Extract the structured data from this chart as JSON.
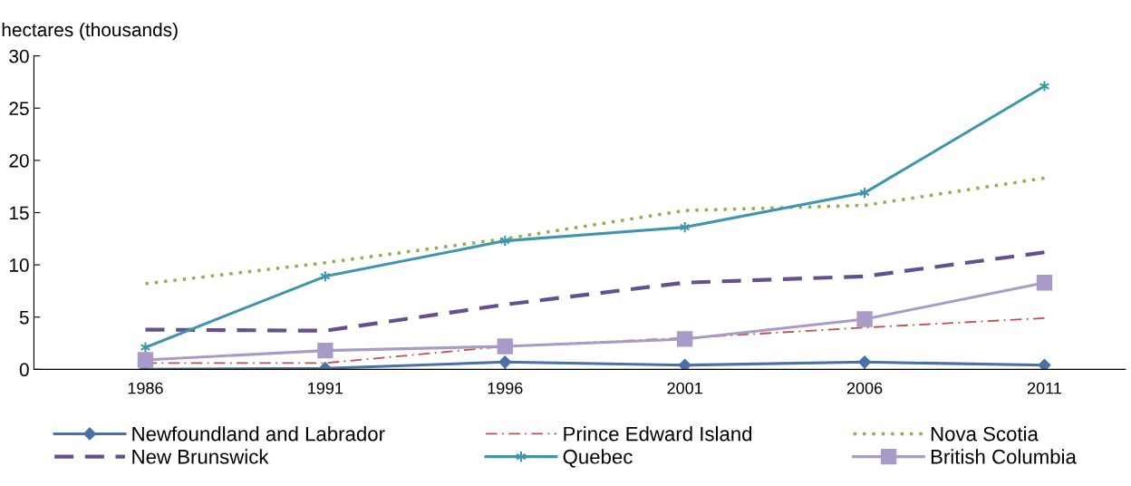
{
  "chart_data": {
    "type": "line",
    "ylabel": "hectares (thousands)",
    "categories": [
      "1986",
      "1991",
      "1996",
      "2001",
      "2006",
      "2011"
    ],
    "ylim": [
      0,
      30
    ],
    "yticks": [
      0,
      5,
      10,
      15,
      20,
      25,
      30
    ],
    "grid": false,
    "legend": "bottom",
    "series": [
      {
        "name": "Newfoundland and Labrador",
        "color": "#4a70a8",
        "values": [
          0.0,
          0.1,
          0.7,
          0.4,
          0.7,
          0.4
        ],
        "marker": "diamond",
        "line_style": "solid"
      },
      {
        "name": "Prince Edward Island",
        "color": "#c0504d",
        "values": [
          0.6,
          0.6,
          2.2,
          3.0,
          4.0,
          4.9
        ],
        "marker": "none",
        "line_style": "dashdot"
      },
      {
        "name": "Nova Scotia",
        "color": "#8fb04f",
        "values": [
          8.2,
          10.2,
          12.5,
          15.2,
          15.7,
          18.3
        ],
        "marker": "none",
        "line_style": "dotted"
      },
      {
        "name": "New Brunswick",
        "color": "#65508f",
        "values": [
          3.8,
          3.7,
          6.2,
          8.3,
          8.9,
          11.2
        ],
        "marker": "none",
        "line_style": "dashed"
      },
      {
        "name": "Quebec",
        "color": "#3f96ac",
        "values": [
          2.1,
          8.9,
          12.3,
          13.6,
          16.9,
          27.1
        ],
        "marker": "cross",
        "line_style": "solid"
      },
      {
        "name": "British Columbia",
        "color": "#a99bc8",
        "values": [
          0.9,
          1.8,
          2.2,
          2.9,
          4.8,
          8.3
        ],
        "marker": "square",
        "line_style": "solid"
      }
    ]
  }
}
